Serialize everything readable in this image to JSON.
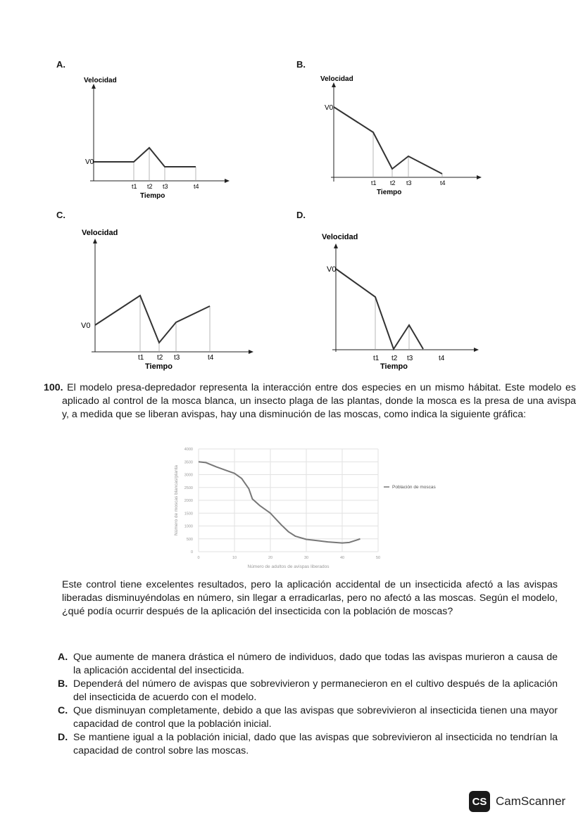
{
  "graphs": [
    {
      "letter": "A.",
      "ylabel": "Velocidad",
      "xlabel": "Tiempo",
      "v0": "V0",
      "ticks": [
        "t1",
        "t2",
        "t3",
        "t4"
      ]
    },
    {
      "letter": "B.",
      "ylabel": "Velocidad",
      "xlabel": "Tiempo",
      "v0": "V0",
      "ticks": [
        "t1",
        "t2",
        "t3",
        "t4"
      ]
    },
    {
      "letter": "C.",
      "ylabel": "Velocidad",
      "xlabel": "Tiempo",
      "v0": "V0",
      "ticks": [
        "t1",
        "t2",
        "t3",
        "t4"
      ]
    },
    {
      "letter": "D.",
      "ylabel": "Velocidad",
      "xlabel": "Tiempo",
      "v0": "V0",
      "ticks": [
        "t1",
        "t2",
        "t3",
        "t4"
      ]
    }
  ],
  "question": {
    "number": "100.",
    "text": "El modelo presa-depredador representa la interacción entre dos especies en un mismo hábitat. Este modelo es aplicado al control de la mosca blanca, un insecto plaga de las plantas, donde la mosca es la presa de una avispa y, a medida que se liberan avispas, hay una disminución de las moscas, como indica la siguiente gráfica:",
    "followup": "Este control tiene excelentes resultados, pero la aplicación accidental de un insecticida afectó a las avispas liberadas disminuyéndolas en número, sin llegar a erradicarlas, pero no afectó a las moscas. Según el modelo, ¿qué podía ocurrir después de la aplicación del insecticida con la población de moscas?",
    "options": [
      {
        "letter": "A.",
        "text": "Que aumente de manera drástica el número de individuos, dado que todas las avispas murieron a causa de la aplicación accidental del insecticida."
      },
      {
        "letter": "B.",
        "text": "Dependerá del número de avispas que sobrevivieron y permanecieron en el cultivo después de la aplicación del insecticida de acuerdo con el modelo."
      },
      {
        "letter": "C.",
        "text": "Que disminuyan completamente, debido a que las avispas que sobrevivieron al insecticida tienen una mayor capacidad de control que la población inicial."
      },
      {
        "letter": "D.",
        "text": "Se mantiene igual a la población inicial, dado que las avispas que sobrevivieron al insecticida no tendrían la capacidad de control sobre las moscas."
      }
    ]
  },
  "chart_data": {
    "type": "line",
    "title": "",
    "xlabel": "Número de adultos de avispas liberados",
    "ylabel": "Número de moscas blancas/planta",
    "xlim": [
      0,
      50
    ],
    "ylim": [
      0,
      4000
    ],
    "xticks": [
      "0",
      "10",
      "20",
      "30",
      "40",
      "50"
    ],
    "yticks": [
      "0",
      "500",
      "1000",
      "1500",
      "2000",
      "2500",
      "3000",
      "3500",
      "4000"
    ],
    "grid": true,
    "legend_position": "right",
    "line_color": "#777777",
    "series": [
      {
        "name": "Población de moscas",
        "x": [
          0,
          2,
          5,
          8,
          10,
          12,
          14,
          15,
          17,
          20,
          23,
          25,
          27,
          30,
          33,
          36,
          40,
          42,
          44,
          45
        ],
        "y": [
          3500,
          3470,
          3300,
          3150,
          3050,
          2850,
          2450,
          2050,
          1800,
          1500,
          1050,
          780,
          600,
          480,
          430,
          380,
          340,
          360,
          450,
          500
        ]
      }
    ]
  },
  "footer": {
    "logo_text": "CS",
    "brand": "CamScanner"
  }
}
